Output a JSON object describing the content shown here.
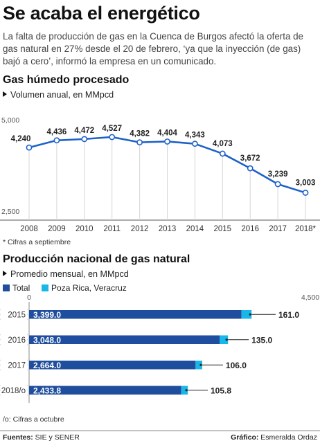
{
  "headline": "Se acaba el energético",
  "dek": "La falta de producción de gas en la Cuenca de Burgos afectó la oferta de gas natural en 27% desde el 20 de febrero, ‘ya que la inyección (de gas) bajó a cero’, informó la empresa en un comunicado.",
  "colors": {
    "total": "#1f4e9e",
    "poza_rica": "#19b6ea",
    "line": "#1e62c8",
    "dots": "#c8c8c8"
  },
  "chart_data": [
    {
      "type": "line",
      "title": "Gas húmedo procesado",
      "subtitle": "Volumen anual, en MMpcd",
      "categories": [
        "2008",
        "2009",
        "2010",
        "2011",
        "2012",
        "2013",
        "2014",
        "2015",
        "2016",
        "2017",
        "2018*"
      ],
      "values": [
        4240,
        4436,
        4472,
        4527,
        4382,
        4404,
        4343,
        4073,
        3672,
        3239,
        3003
      ],
      "value_labels": [
        "4,240",
        "4,436",
        "4,472",
        "4,527",
        "4,382",
        "4,404",
        "4,343",
        "4,073",
        "3,672",
        "3,239",
        "3,003"
      ],
      "ylim": [
        2500,
        5000
      ],
      "y_tick_labels": [
        "2,500",
        "5,000"
      ],
      "note": "* Cifras a septiembre"
    },
    {
      "type": "bar",
      "orientation": "horizontal",
      "stacked": true,
      "title": "Producción nacional de gas natural",
      "subtitle": "Promedio mensual, en MMpcd",
      "categories": [
        "2015",
        "2016",
        "2017",
        "2018/o"
      ],
      "series": [
        {
          "name": "Total",
          "values": [
            3399.0,
            3048.0,
            2664.0,
            2433.8
          ],
          "labels": [
            "3,399.0",
            "3,048.0",
            "2,664.0",
            "2,433.8"
          ]
        },
        {
          "name": "Poza Rica, Veracruz",
          "values": [
            161.0,
            135.0,
            106.0,
            105.8
          ],
          "labels": [
            "161.0",
            "135.0",
            "106.0",
            "105.8"
          ]
        }
      ],
      "xlim": [
        0,
        4500
      ],
      "x_tick_labels": [
        "0",
        "4,500"
      ],
      "legend": "top-left",
      "note": "/o: Cifras a octubre"
    }
  ],
  "footer": {
    "sources_label": "Fuentes:",
    "sources_text": " SIE y SENER",
    "credit_label": "Gráfico:",
    "credit_text": " Esmeralda Ordaz"
  }
}
